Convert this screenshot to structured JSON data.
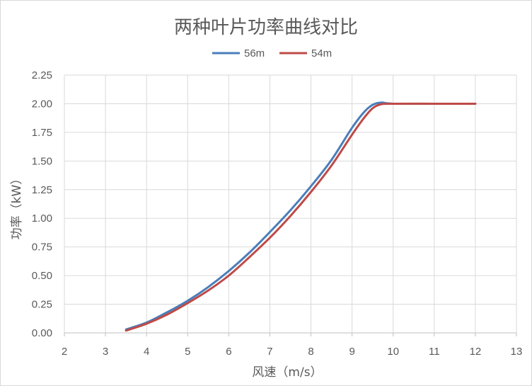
{
  "chart_data": {
    "type": "line",
    "title": "两种叶片功率曲线对比",
    "xlabel": "风速（m/s）",
    "ylabel": "功率（kW）",
    "xlim": [
      2,
      13
    ],
    "ylim": [
      0,
      2.25
    ],
    "x_ticks": [
      "2",
      "3",
      "4",
      "5",
      "6",
      "7",
      "8",
      "9",
      "10",
      "11",
      "12",
      "13"
    ],
    "y_ticks": [
      "0.00",
      "0.25",
      "0.50",
      "0.75",
      "1.00",
      "1.25",
      "1.50",
      "1.75",
      "2.00",
      "2.25"
    ],
    "grid": true,
    "legend_position": "top-center",
    "series": [
      {
        "name": "56m",
        "color": "#4a7ebb",
        "points": [
          [
            3.5,
            0.03
          ],
          [
            4,
            0.09
          ],
          [
            4.5,
            0.18
          ],
          [
            5,
            0.28
          ],
          [
            5.5,
            0.4
          ],
          [
            6,
            0.54
          ],
          [
            6.5,
            0.7
          ],
          [
            7,
            0.88
          ],
          [
            7.5,
            1.07
          ],
          [
            8,
            1.28
          ],
          [
            8.5,
            1.51
          ],
          [
            9,
            1.79
          ],
          [
            9.3,
            1.93
          ],
          [
            9.5,
            1.99
          ],
          [
            9.7,
            2.01
          ],
          [
            10,
            2.0
          ],
          [
            11,
            2.0
          ],
          [
            12,
            2.0
          ]
        ]
      },
      {
        "name": "54m",
        "color": "#be4b48",
        "points": [
          [
            3.5,
            0.02
          ],
          [
            4,
            0.08
          ],
          [
            4.5,
            0.16
          ],
          [
            5,
            0.26
          ],
          [
            5.5,
            0.37
          ],
          [
            6,
            0.5
          ],
          [
            6.5,
            0.66
          ],
          [
            7,
            0.83
          ],
          [
            7.5,
            1.02
          ],
          [
            8,
            1.23
          ],
          [
            8.5,
            1.46
          ],
          [
            9,
            1.73
          ],
          [
            9.3,
            1.88
          ],
          [
            9.5,
            1.96
          ],
          [
            9.7,
            1.995
          ],
          [
            10,
            2.0
          ],
          [
            11,
            2.0
          ],
          [
            12,
            2.0
          ]
        ]
      }
    ]
  }
}
